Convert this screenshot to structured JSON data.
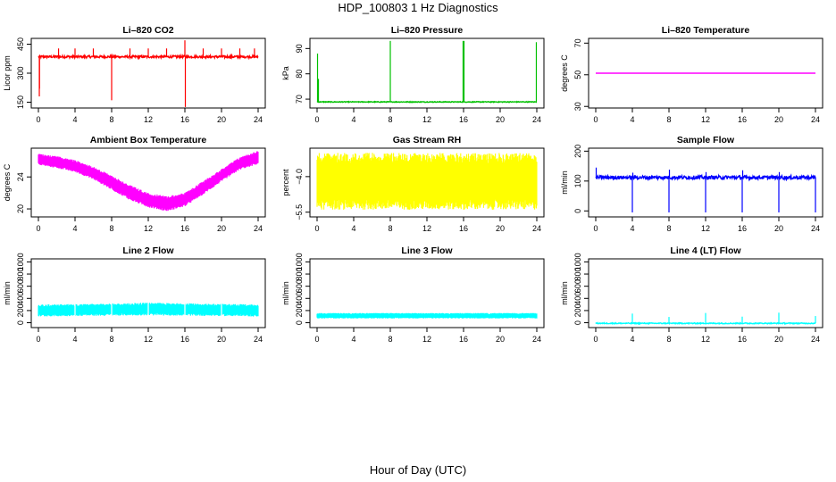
{
  "figure": {
    "title": "HDP_100803  1 Hz Diagnostics",
    "xlabel": "Hour of Day (UTC)"
  },
  "chart_data": [
    {
      "type": "line",
      "title": "Li–820 CO2",
      "xlabel": "",
      "ylabel": "Licor ppm",
      "xlim": [
        0,
        24
      ],
      "ylim": [
        120,
        480
      ],
      "xticks": [
        "0",
        "4",
        "8",
        "12",
        "16",
        "20",
        "24"
      ],
      "yticks": [
        150,
        300,
        450
      ],
      "ytick_labels": [
        "150",
        "300",
        "450"
      ],
      "color": "#ff0000",
      "baseline": 385,
      "noise": 6,
      "spikes": [
        {
          "x": 2.2,
          "y": 428
        },
        {
          "x": 4,
          "y": 428
        },
        {
          "x": 6,
          "y": 428
        },
        {
          "x": 10,
          "y": 428
        },
        {
          "x": 12,
          "y": 428
        },
        {
          "x": 14,
          "y": 428
        },
        {
          "x": 18,
          "y": 428
        },
        {
          "x": 20,
          "y": 428
        },
        {
          "x": 22,
          "y": 428
        },
        {
          "x": 23.6,
          "y": 428
        },
        {
          "x": 8,
          "y": 160
        },
        {
          "x": 16,
          "y": 470
        },
        {
          "x": 16.05,
          "y": 125
        },
        {
          "x": 0.1,
          "y": 180
        },
        {
          "x": 0.12,
          "y": 220
        }
      ]
    },
    {
      "type": "line",
      "title": "Li–820 Pressure",
      "xlabel": "",
      "ylabel": "kPa",
      "xlim": [
        0,
        24
      ],
      "ylim": [
        66.5,
        94
      ],
      "xticks": [
        "0",
        "4",
        "8",
        "12",
        "16",
        "20",
        "24"
      ],
      "yticks": [
        70,
        80,
        90
      ],
      "ytick_labels": [
        "70",
        "80",
        "90"
      ],
      "color": "#00c000",
      "baseline": 68.9,
      "noise": 0.15,
      "spikes": [
        {
          "x": 0.05,
          "y": 88
        },
        {
          "x": 0.15,
          "y": 78
        },
        {
          "x": 8,
          "y": 93
        },
        {
          "x": 15.95,
          "y": 93
        },
        {
          "x": 16.05,
          "y": 93
        },
        {
          "x": 23.95,
          "y": 92.5
        }
      ]
    },
    {
      "type": "line",
      "title": "Li–820 Temperature",
      "xlabel": "",
      "ylabel": "degrees C",
      "xlim": [
        0,
        24
      ],
      "ylim": [
        29,
        73
      ],
      "xticks": [
        "0",
        "4",
        "8",
        "12",
        "16",
        "20",
        "24"
      ],
      "yticks": [
        30,
        50,
        70
      ],
      "ytick_labels": [
        "30",
        "50",
        "70"
      ],
      "color": "#ff00ff",
      "baseline": 51,
      "noise": 0,
      "spikes": []
    },
    {
      "type": "area",
      "title": "Ambient Box Temperature",
      "xlabel": "",
      "ylabel": "degrees C",
      "xlim": [
        0,
        24
      ],
      "ylim": [
        19,
        27.6
      ],
      "xticks": [
        "0",
        "4",
        "8",
        "12",
        "16",
        "20",
        "24"
      ],
      "yticks": [
        20,
        24
      ],
      "ytick_labels": [
        "20",
        "24"
      ],
      "color": "#ff00ff",
      "x": [
        0,
        2,
        4,
        6,
        8,
        10,
        12,
        14,
        16,
        18,
        20,
        22,
        24
      ],
      "upper": [
        26.9,
        26.6,
        26.1,
        25.3,
        24.2,
        23.0,
        22.0,
        21.6,
        22.0,
        23.5,
        25.0,
        26.5,
        27.3
      ],
      "lower": [
        25.5,
        25.1,
        24.6,
        23.7,
        22.4,
        21.1,
        20.2,
        19.7,
        20.3,
        21.8,
        23.4,
        24.9,
        25.6
      ]
    },
    {
      "type": "area",
      "title": "Gas Stream RH",
      "xlabel": "",
      "ylabel": "percent",
      "xlim": [
        0,
        24
      ],
      "ylim": [
        -5.7,
        -2.8
      ],
      "xticks": [
        "0",
        "4",
        "8",
        "12",
        "16",
        "20",
        "24"
      ],
      "yticks": [
        -5.5,
        -4.0
      ],
      "ytick_labels": [
        "−5.5",
        "−4.0"
      ],
      "color": "#ffff00",
      "x": [
        0,
        24
      ],
      "upper": [
        -3.0,
        -3.0
      ],
      "lower": [
        -5.4,
        -5.4
      ]
    },
    {
      "type": "line",
      "title": "Sample Flow",
      "xlabel": "",
      "ylabel": "ml/min",
      "xlim": [
        0,
        24
      ],
      "ylim": [
        -20,
        210
      ],
      "xticks": [
        "0",
        "4",
        "8",
        "12",
        "16",
        "20",
        "24"
      ],
      "yticks": [
        0,
        100,
        200
      ],
      "ytick_labels": [
        "0",
        "100",
        "200"
      ],
      "color": "#0000ff",
      "baseline": 112,
      "noise": 6,
      "spikes": [
        {
          "x": 0.05,
          "y": 145
        },
        {
          "x": 4,
          "y": -5
        },
        {
          "x": 4.05,
          "y": 128
        },
        {
          "x": 8,
          "y": -5
        },
        {
          "x": 8.05,
          "y": 138
        },
        {
          "x": 12,
          "y": -5
        },
        {
          "x": 12.05,
          "y": 130
        },
        {
          "x": 16,
          "y": -5
        },
        {
          "x": 16.05,
          "y": 136
        },
        {
          "x": 20,
          "y": -5
        },
        {
          "x": 20.05,
          "y": 130
        },
        {
          "x": 24,
          "y": -5
        }
      ]
    },
    {
      "type": "area",
      "title": "Line 2 Flow",
      "xlabel": "",
      "ylabel": "ml/min",
      "xlim": [
        0,
        24
      ],
      "ylim": [
        -80,
        1050
      ],
      "xticks": [
        "0",
        "4",
        "8",
        "12",
        "16",
        "20",
        "24"
      ],
      "yticks": [
        0,
        200,
        400,
        600,
        800,
        1000
      ],
      "ytick_labels": [
        "0",
        "200",
        "400",
        "600",
        "800",
        "1000"
      ],
      "color": "#00ffff",
      "x": [
        0,
        4,
        8,
        12,
        16,
        20,
        24
      ],
      "upper": [
        300,
        305,
        315,
        330,
        320,
        310,
        300
      ],
      "lower": [
        100,
        110,
        115,
        120,
        115,
        110,
        100
      ],
      "gaps": [
        4,
        8,
        12,
        16,
        20
      ]
    },
    {
      "type": "area",
      "title": "Line 3 Flow",
      "xlabel": "",
      "ylabel": "ml/min",
      "xlim": [
        0,
        24
      ],
      "ylim": [
        -80,
        1050
      ],
      "xticks": [
        "0",
        "4",
        "8",
        "12",
        "16",
        "20",
        "24"
      ],
      "yticks": [
        0,
        200,
        400,
        600,
        800,
        1000
      ],
      "ytick_labels": [
        "0",
        "200",
        "400",
        "600",
        "800",
        "1000"
      ],
      "color": "#00ffff",
      "x": [
        0,
        24
      ],
      "upper": [
        160,
        160
      ],
      "lower": [
        70,
        70
      ],
      "gaps": []
    },
    {
      "type": "line",
      "title": "Line 4 (LT) Flow",
      "xlabel": "",
      "ylabel": "ml/min",
      "xlim": [
        0,
        24
      ],
      "ylim": [
        -80,
        1050
      ],
      "xticks": [
        "0",
        "4",
        "8",
        "12",
        "16",
        "20",
        "24"
      ],
      "yticks": [
        0,
        200,
        400,
        600,
        800,
        1000
      ],
      "ytick_labels": [
        "0",
        "200",
        "400",
        "600",
        "800",
        "1000"
      ],
      "color": "#00ffff",
      "baseline": -10,
      "noise": 8,
      "spikes": [
        {
          "x": 4,
          "y": 150
        },
        {
          "x": 8,
          "y": 95
        },
        {
          "x": 12,
          "y": 160
        },
        {
          "x": 16,
          "y": 100
        },
        {
          "x": 20,
          "y": 165
        },
        {
          "x": 24,
          "y": 110
        }
      ]
    }
  ]
}
